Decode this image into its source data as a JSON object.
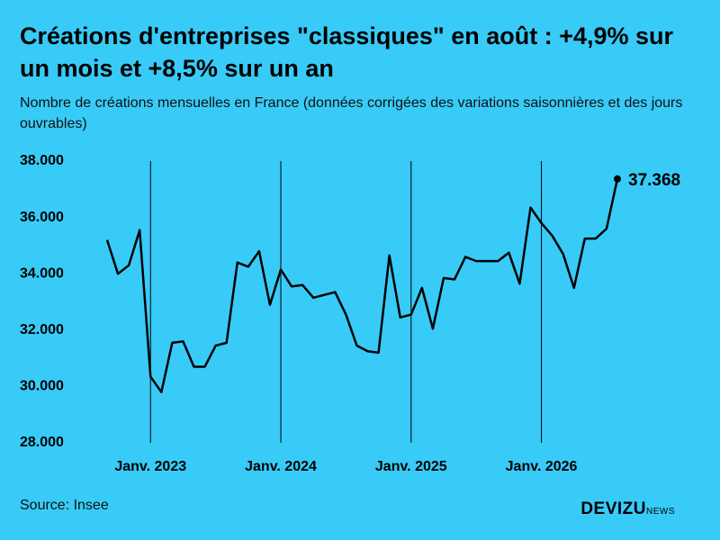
{
  "chart_data": {
    "type": "line",
    "title": "Créations d'entreprises \"classiques\" en août : +4,9% sur un mois et +8,5% sur un an",
    "subtitle": "Nombre de créations mensuelles en France (données corrigées des variations saisonnières et des jours ouvrables)",
    "categories": [
      null,
      null,
      null,
      null,
      "Janv. 2023",
      null,
      null,
      null,
      null,
      null,
      null,
      null,
      null,
      null,
      null,
      null,
      "Janv. 2024",
      null,
      null,
      null,
      null,
      null,
      null,
      null,
      null,
      null,
      null,
      null,
      "Janv. 2025",
      null,
      null,
      null,
      null,
      null,
      null,
      null,
      null,
      null,
      null,
      null,
      "Janv. 2026",
      null,
      null,
      null,
      null,
      null,
      null,
      null
    ],
    "values": [
      35200,
      34000,
      34300,
      35550,
      30350,
      29800,
      31550,
      31600,
      30700,
      30700,
      31450,
      31550,
      34400,
      34250,
      34800,
      32900,
      34150,
      33550,
      33600,
      33150,
      33250,
      33350,
      32550,
      31450,
      31250,
      31200,
      34650,
      32450,
      32550,
      33500,
      32050,
      33850,
      33800,
      34600,
      34450,
      34450,
      34450,
      34750,
      33650,
      36350,
      35800,
      35350,
      34700,
      33500,
      35250,
      35250,
      35600,
      37368
    ],
    "value_labels": [
      null,
      null,
      null,
      null,
      null,
      null,
      null,
      null,
      null,
      null,
      null,
      null,
      null,
      null,
      null,
      null,
      null,
      null,
      null,
      null,
      null,
      null,
      null,
      null,
      null,
      null,
      null,
      null,
      null,
      null,
      null,
      null,
      null,
      null,
      null,
      null,
      null,
      null,
      null,
      null,
      null,
      null,
      null,
      null,
      null,
      null,
      null,
      "37.368"
    ],
    "color": "#000000",
    "ylim": [
      28000,
      38000
    ],
    "yticks": [
      {
        "value": 28000,
        "label": "28.000"
      },
      {
        "value": 30000,
        "label": "30.000"
      },
      {
        "value": 32000,
        "label": "32.000"
      },
      {
        "value": 34000,
        "label": "34.000"
      },
      {
        "value": 36000,
        "label": "36.000"
      },
      {
        "value": 38000,
        "label": "38.000"
      }
    ],
    "source": "Source: Insee"
  },
  "brand": {
    "name": "DEVIZU",
    "suffix": "NEWS"
  }
}
